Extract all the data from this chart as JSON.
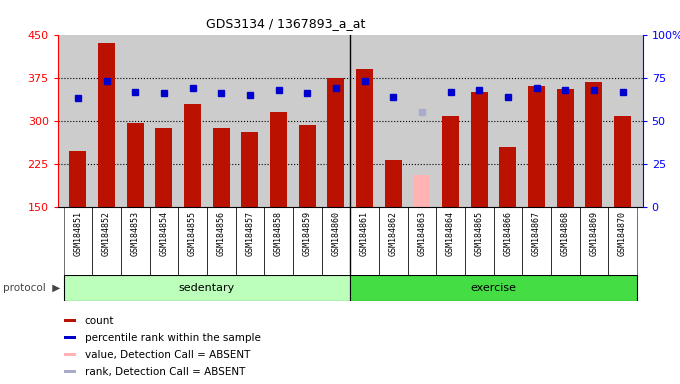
{
  "title": "GDS3134 / 1367893_a_at",
  "samples": [
    "GSM184851",
    "GSM184852",
    "GSM184853",
    "GSM184854",
    "GSM184855",
    "GSM184856",
    "GSM184857",
    "GSM184858",
    "GSM184859",
    "GSM184860",
    "GSM184861",
    "GSM184862",
    "GSM184863",
    "GSM184864",
    "GSM184865",
    "GSM184866",
    "GSM184867",
    "GSM184868",
    "GSM184869",
    "GSM184870"
  ],
  "count_values": [
    248,
    435,
    297,
    288,
    330,
    287,
    280,
    315,
    293,
    374,
    390,
    232,
    207,
    308,
    350,
    255,
    360,
    355,
    368,
    308
  ],
  "absent_count": [
    false,
    false,
    false,
    false,
    false,
    false,
    false,
    false,
    false,
    false,
    false,
    false,
    true,
    false,
    false,
    false,
    false,
    false,
    false,
    false
  ],
  "rank_values": [
    63,
    73,
    67,
    66,
    69,
    66,
    65,
    68,
    66,
    69,
    73,
    64,
    55,
    67,
    68,
    64,
    69,
    68,
    68,
    67
  ],
  "absent_rank": [
    false,
    false,
    false,
    false,
    false,
    false,
    false,
    false,
    false,
    false,
    false,
    false,
    true,
    false,
    false,
    false,
    false,
    false,
    false,
    false
  ],
  "groups": {
    "sedentary": [
      0,
      9
    ],
    "exercise": [
      10,
      19
    ]
  },
  "ylim_left": [
    150,
    450
  ],
  "ylim_right": [
    0,
    100
  ],
  "yticks_left": [
    150,
    225,
    300,
    375,
    450
  ],
  "yticks_right": [
    0,
    25,
    50,
    75,
    100
  ],
  "bar_color": "#BB1100",
  "bar_absent_color": "#FFB3B3",
  "rank_color": "#0000CC",
  "rank_absent_color": "#AAAACC",
  "bg_color": "#CCCCCC",
  "group_bg_light": "#BBFFBB",
  "group_bg_dark": "#44DD44",
  "legend_items": [
    {
      "label": "count",
      "color": "#BB1100"
    },
    {
      "label": "percentile rank within the sample",
      "color": "#0000CC"
    },
    {
      "label": "value, Detection Call = ABSENT",
      "color": "#FFB3B3"
    },
    {
      "label": "rank, Detection Call = ABSENT",
      "color": "#AAAACC"
    }
  ]
}
